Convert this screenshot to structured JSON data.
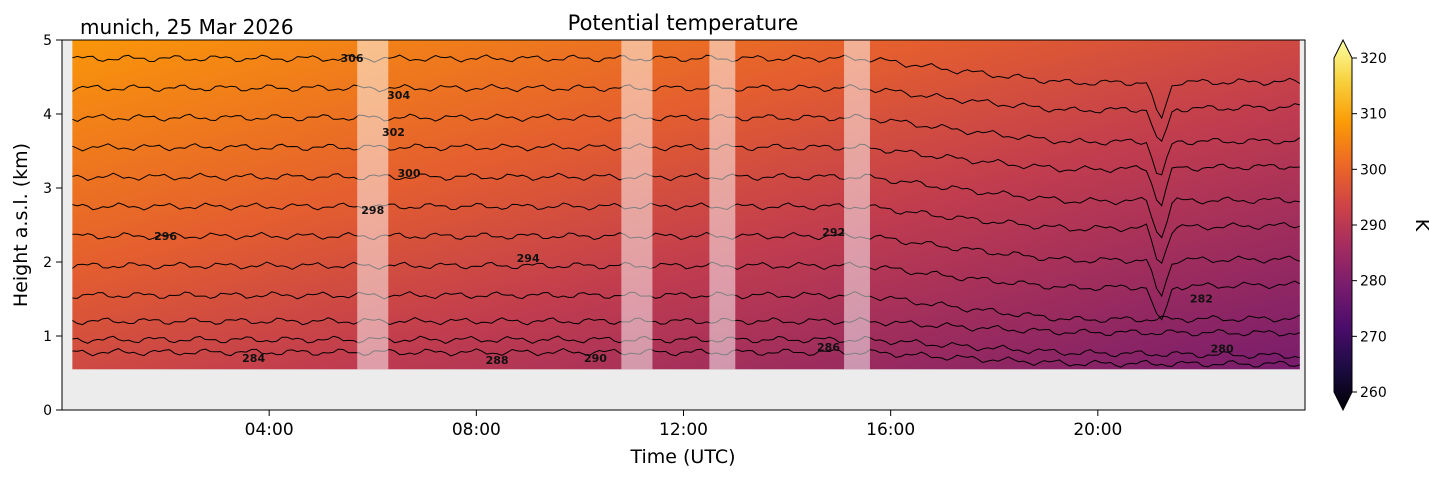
{
  "chart_data": {
    "type": "heatmap",
    "title": "Potential temperature",
    "subtitle": "munich, 25 Mar 2026",
    "xlabel": "Time (UTC)",
    "ylabel": "Height a.s.l. (km)",
    "xlim": [
      0,
      24
    ],
    "ylim": [
      0,
      5
    ],
    "x_ticks": [
      {
        "value": 4,
        "label": "04:00"
      },
      {
        "value": 8,
        "label": "08:00"
      },
      {
        "value": 12,
        "label": "12:00"
      },
      {
        "value": 16,
        "label": "16:00"
      },
      {
        "value": 20,
        "label": "20:00"
      }
    ],
    "y_ticks": [
      {
        "value": 0,
        "label": "0"
      },
      {
        "value": 1,
        "label": "1"
      },
      {
        "value": 2,
        "label": "2"
      },
      {
        "value": 3,
        "label": "3"
      },
      {
        "value": 4,
        "label": "4"
      },
      {
        "value": 5,
        "label": "5"
      }
    ],
    "data_extent": {
      "time_start": 0.2,
      "time_end": 23.9,
      "height_bottom": 0.55,
      "height_top": 5.0
    },
    "missing_data_periods": [
      [
        5.7,
        6.3
      ],
      [
        10.8,
        11.4
      ],
      [
        12.5,
        13.0
      ],
      [
        15.1,
        15.6
      ]
    ],
    "colorbar": {
      "label": "K",
      "range": [
        260,
        320
      ],
      "ticks": [
        {
          "value": 260,
          "label": "260"
        },
        {
          "value": 270,
          "label": "270"
        },
        {
          "value": 280,
          "label": "280"
        },
        {
          "value": 290,
          "label": "290"
        },
        {
          "value": 300,
          "label": "300"
        },
        {
          "value": 310,
          "label": "310"
        },
        {
          "value": 320,
          "label": "320"
        }
      ],
      "colormap": [
        "#000004",
        "#1b0c41",
        "#4a0c6b",
        "#781c6d",
        "#a52c60",
        "#cf4446",
        "#ed6925",
        "#fb9b06",
        "#f7d13d",
        "#fcffa4"
      ]
    },
    "contour_labels": [
      {
        "text": "306",
        "time": 5.6,
        "height": 4.7
      },
      {
        "text": "304",
        "time": 6.5,
        "height": 4.2
      },
      {
        "text": "302",
        "time": 6.4,
        "height": 3.7
      },
      {
        "text": "300",
        "time": 6.7,
        "height": 3.15
      },
      {
        "text": "298",
        "time": 6.0,
        "height": 2.65
      },
      {
        "text": "296",
        "time": 2.0,
        "height": 2.3
      },
      {
        "text": "294",
        "time": 9.0,
        "height": 2.0
      },
      {
        "text": "292",
        "time": 14.9,
        "height": 2.35
      },
      {
        "text": "290",
        "time": 10.3,
        "height": 0.65
      },
      {
        "text": "288",
        "time": 8.4,
        "height": 0.62
      },
      {
        "text": "286",
        "time": 14.8,
        "height": 0.8
      },
      {
        "text": "284",
        "time": 3.7,
        "height": 0.65
      },
      {
        "text": "282",
        "time": 22.0,
        "height": 1.45
      },
      {
        "text": "280",
        "time": 22.4,
        "height": 0.78
      }
    ]
  }
}
